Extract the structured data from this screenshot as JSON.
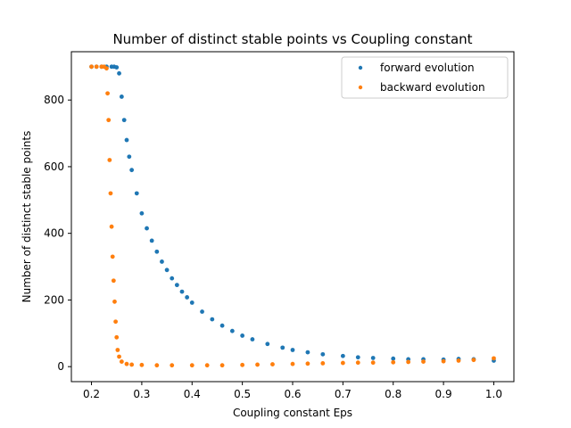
{
  "chart_data": {
    "type": "scatter",
    "title": "Number of distinct stable points vs Coupling constant",
    "xlabel": "Coupling constant Eps",
    "ylabel": "Number of distinct stable points",
    "xlim": [
      0.16,
      1.04
    ],
    "ylim": [
      -45,
      945
    ],
    "xticks": [
      0.2,
      0.3,
      0.4,
      0.5,
      0.6,
      0.7,
      0.8,
      0.9,
      1.0
    ],
    "xtick_labels": [
      "0.2",
      "0.3",
      "0.4",
      "0.5",
      "0.6",
      "0.7",
      "0.8",
      "0.9",
      "1.0"
    ],
    "yticks": [
      0,
      200,
      400,
      600,
      800
    ],
    "ytick_labels": [
      "0",
      "200",
      "400",
      "600",
      "800"
    ],
    "grid": false,
    "legend": "top-right",
    "series": [
      {
        "name": "forward evolution",
        "color": "#1f77b4",
        "points": [
          [
            0.2,
            900
          ],
          [
            0.21,
            900
          ],
          [
            0.22,
            900
          ],
          [
            0.23,
            900
          ],
          [
            0.24,
            900
          ],
          [
            0.245,
            900
          ],
          [
            0.25,
            898
          ],
          [
            0.255,
            880
          ],
          [
            0.26,
            810
          ],
          [
            0.265,
            740
          ],
          [
            0.27,
            680
          ],
          [
            0.275,
            630
          ],
          [
            0.28,
            590
          ],
          [
            0.29,
            520
          ],
          [
            0.3,
            460
          ],
          [
            0.31,
            415
          ],
          [
            0.32,
            378
          ],
          [
            0.33,
            345
          ],
          [
            0.34,
            315
          ],
          [
            0.35,
            290
          ],
          [
            0.36,
            265
          ],
          [
            0.37,
            245
          ],
          [
            0.38,
            225
          ],
          [
            0.39,
            208
          ],
          [
            0.4,
            192
          ],
          [
            0.42,
            165
          ],
          [
            0.44,
            142
          ],
          [
            0.46,
            123
          ],
          [
            0.48,
            107
          ],
          [
            0.5,
            93
          ],
          [
            0.52,
            82
          ],
          [
            0.55,
            68
          ],
          [
            0.58,
            57
          ],
          [
            0.6,
            50
          ],
          [
            0.63,
            43
          ],
          [
            0.66,
            37
          ],
          [
            0.7,
            32
          ],
          [
            0.73,
            28
          ],
          [
            0.76,
            26
          ],
          [
            0.8,
            24
          ],
          [
            0.83,
            22
          ],
          [
            0.86,
            22
          ],
          [
            0.9,
            21
          ],
          [
            0.93,
            23
          ],
          [
            0.96,
            22
          ],
          [
            1.0,
            18
          ]
        ]
      },
      {
        "name": "backward evolution",
        "color": "#ff7f0e",
        "points": [
          [
            0.2,
            900
          ],
          [
            0.21,
            900
          ],
          [
            0.22,
            900
          ],
          [
            0.225,
            900
          ],
          [
            0.23,
            895
          ],
          [
            0.232,
            820
          ],
          [
            0.234,
            740
          ],
          [
            0.236,
            620
          ],
          [
            0.238,
            520
          ],
          [
            0.24,
            420
          ],
          [
            0.242,
            330
          ],
          [
            0.244,
            258
          ],
          [
            0.246,
            195
          ],
          [
            0.248,
            135
          ],
          [
            0.25,
            88
          ],
          [
            0.252,
            50
          ],
          [
            0.255,
            30
          ],
          [
            0.26,
            15
          ],
          [
            0.27,
            8
          ],
          [
            0.28,
            6
          ],
          [
            0.3,
            5
          ],
          [
            0.33,
            4
          ],
          [
            0.36,
            4
          ],
          [
            0.4,
            4
          ],
          [
            0.43,
            4
          ],
          [
            0.46,
            4
          ],
          [
            0.5,
            5
          ],
          [
            0.53,
            6
          ],
          [
            0.56,
            7
          ],
          [
            0.6,
            8
          ],
          [
            0.63,
            9
          ],
          [
            0.66,
            10
          ],
          [
            0.7,
            11
          ],
          [
            0.73,
            12
          ],
          [
            0.76,
            12
          ],
          [
            0.8,
            13
          ],
          [
            0.83,
            14
          ],
          [
            0.86,
            15
          ],
          [
            0.9,
            16
          ],
          [
            0.93,
            18
          ],
          [
            0.96,
            20
          ],
          [
            1.0,
            25
          ]
        ]
      }
    ]
  }
}
